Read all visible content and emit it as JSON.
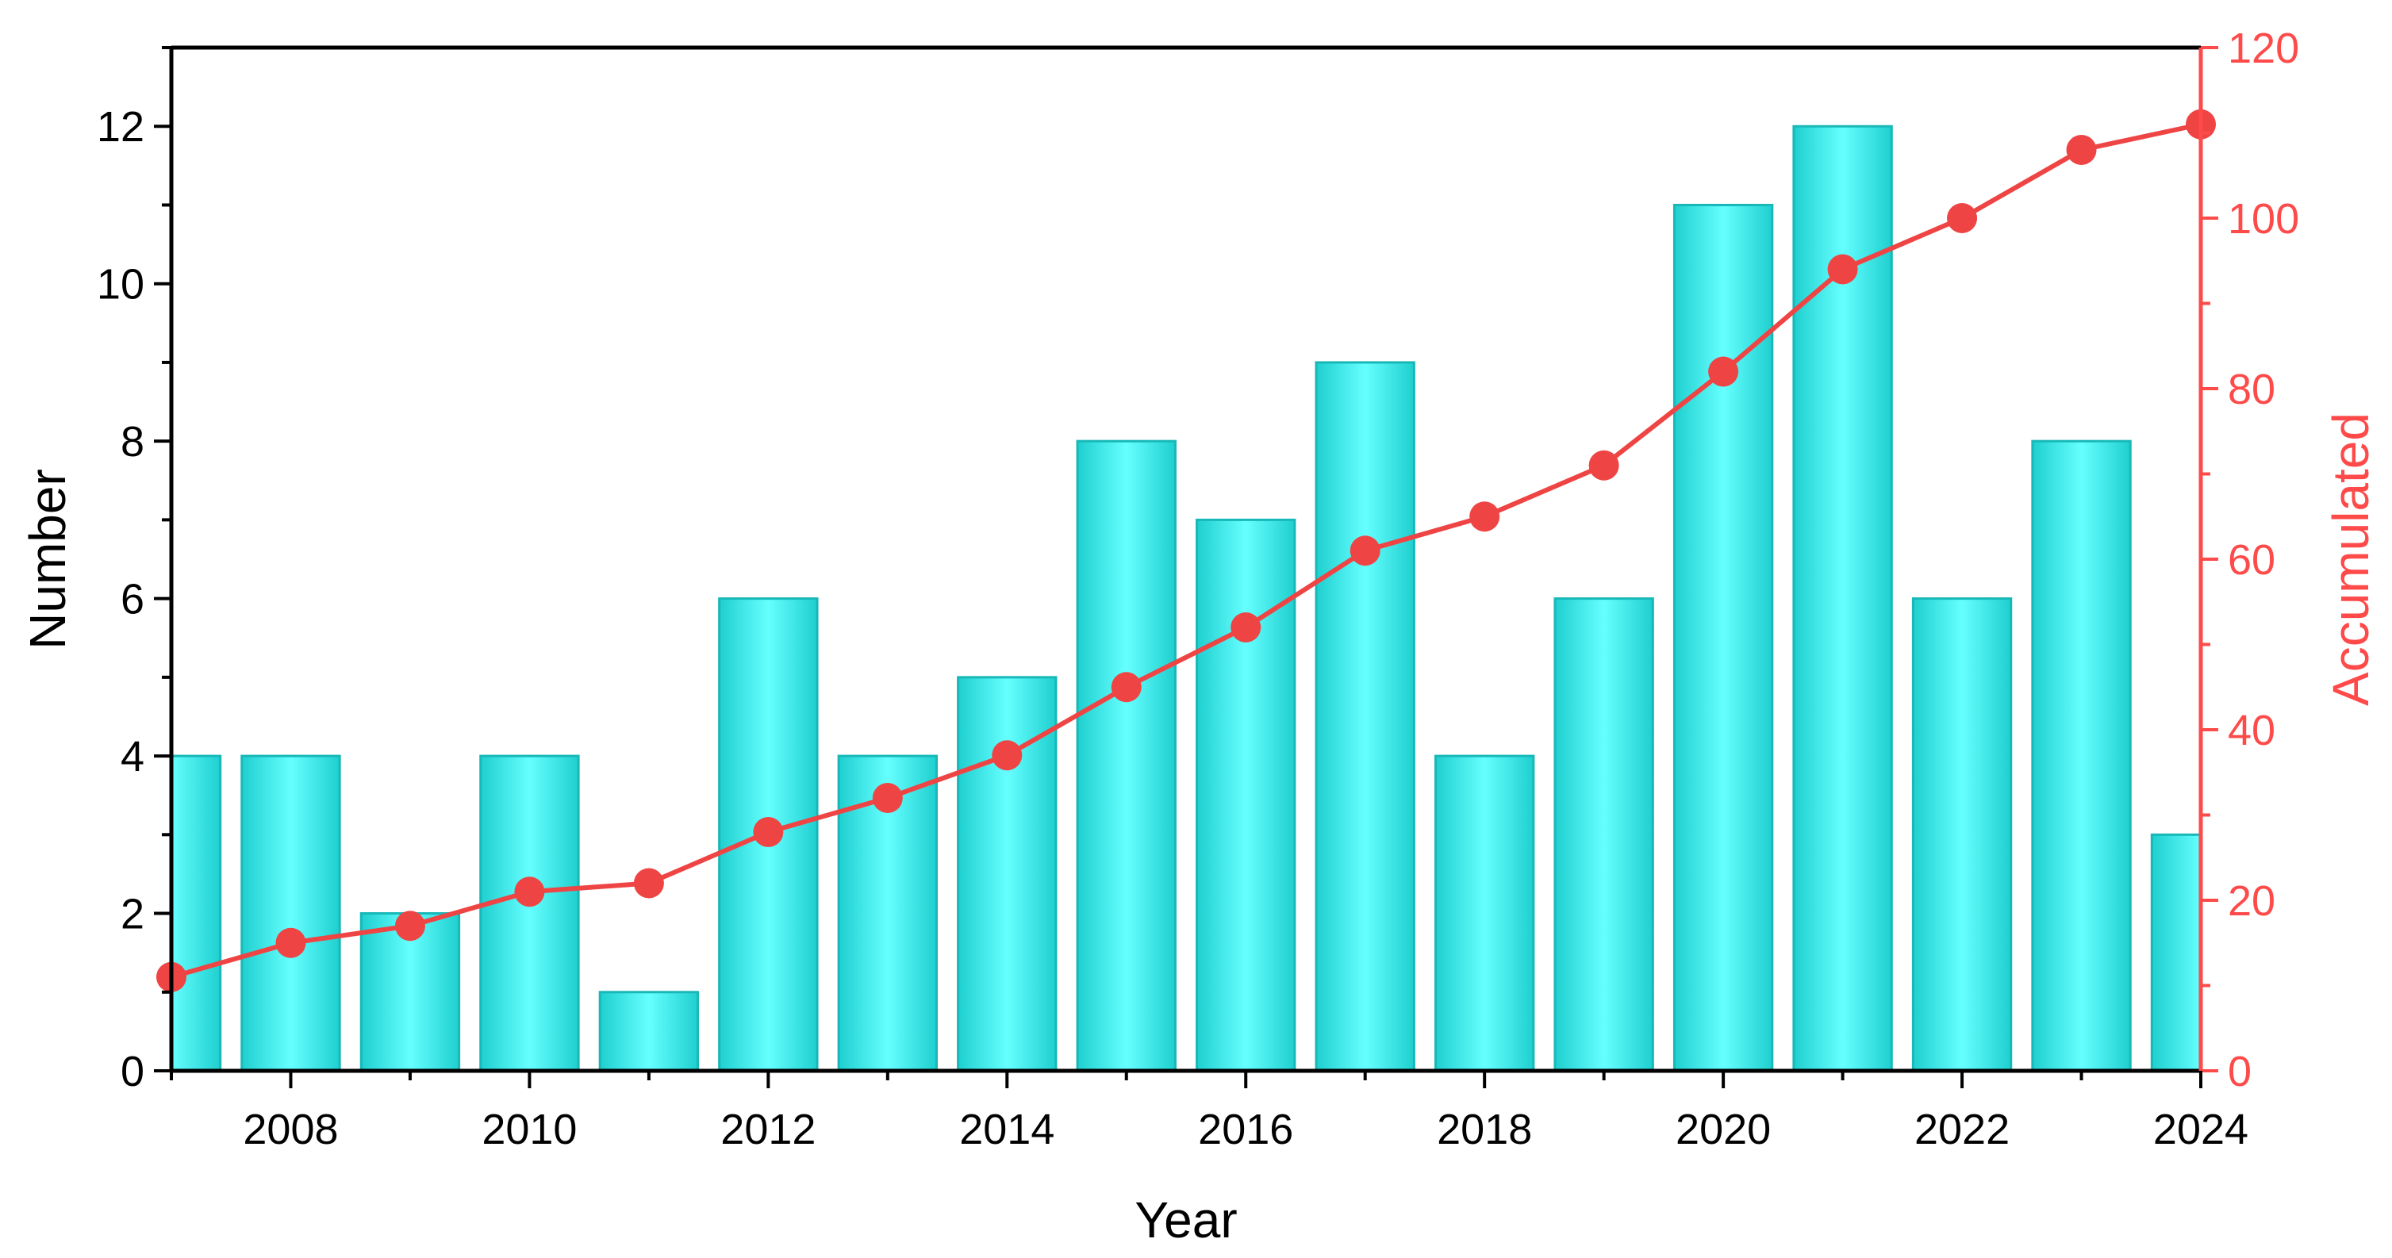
{
  "colors": {
    "bar_fill_center": "#66ffff",
    "bar_fill_edge": "#1fcfcf",
    "bar_stroke": "#18b8b8",
    "line": "#ef4444",
    "left_axis": "#000000",
    "right_axis": "#ff4a4a"
  },
  "chart_data": {
    "type": "bar",
    "xlabel": "Year",
    "ylabel": "Number",
    "y2label": "Accumulated",
    "categories": [
      2007,
      2008,
      2009,
      2010,
      2011,
      2012,
      2013,
      2014,
      2015,
      2016,
      2017,
      2018,
      2019,
      2020,
      2021,
      2022,
      2023,
      2024
    ],
    "x_tick_labels": [
      "2008",
      "2010",
      "2012",
      "2014",
      "2016",
      "2018",
      "2020",
      "2022",
      "2024"
    ],
    "xlim": [
      2007,
      2024
    ],
    "ylim": [
      0,
      13
    ],
    "y_ticks": [
      "0",
      "2",
      "4",
      "6",
      "8",
      "10",
      "12"
    ],
    "y2lim": [
      0,
      120
    ],
    "y2_ticks": [
      "0",
      "20",
      "40",
      "60",
      "80",
      "100",
      "120"
    ],
    "grid": false,
    "series": [
      {
        "type": "bar",
        "axis": "left",
        "values": [
          4,
          4,
          2,
          4,
          1,
          6,
          4,
          5,
          8,
          7,
          9,
          4,
          6,
          11,
          12,
          6,
          8,
          3
        ]
      },
      {
        "type": "line",
        "axis": "right",
        "values": [
          11,
          15,
          17,
          21,
          22,
          28,
          32,
          37,
          45,
          52,
          61,
          65,
          71,
          82,
          94,
          100,
          108,
          111
        ]
      }
    ]
  }
}
